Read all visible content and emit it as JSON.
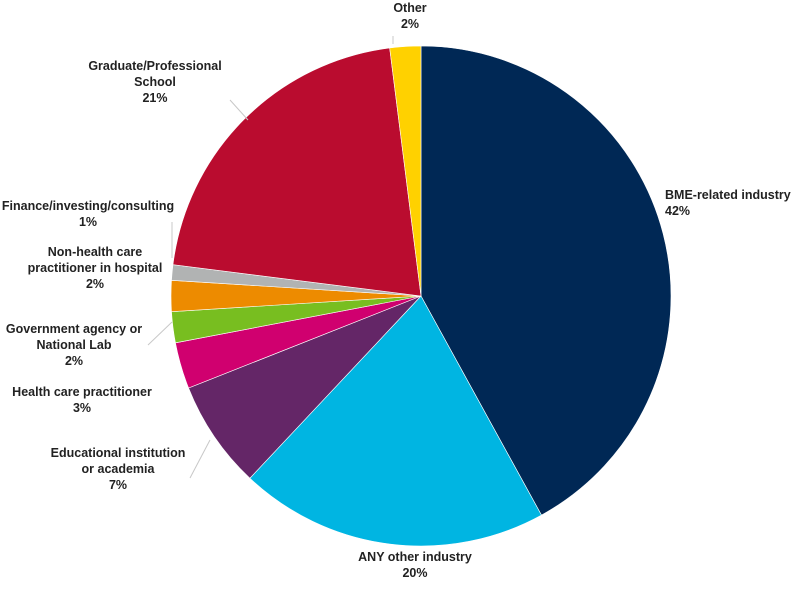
{
  "chart_data": {
    "type": "pie",
    "title": "",
    "slices": [
      {
        "label": [
          "BME-related industry"
        ],
        "value": 42,
        "display": "42%",
        "color": "#002855"
      },
      {
        "label": [
          "ANY other industry"
        ],
        "value": 20,
        "display": "20%",
        "color": "#00B5E2"
      },
      {
        "label": [
          "Educational institution",
          "or academia"
        ],
        "value": 7,
        "display": "7%",
        "color": "#642667"
      },
      {
        "label": [
          "Health care practitioner"
        ],
        "value": 3,
        "display": "3%",
        "color": "#D0006F"
      },
      {
        "label": [
          "Government agency or",
          "National Lab"
        ],
        "value": 2,
        "display": "2%",
        "color": "#78BE20"
      },
      {
        "label": [
          "Non-health care",
          "practitioner in hospital"
        ],
        "value": 2,
        "display": "2%",
        "color": "#ED8B00"
      },
      {
        "label": [
          "Finance/investing/consulting"
        ],
        "value": 1,
        "display": "1%",
        "color": "#B1B3B3"
      },
      {
        "label": [
          "Graduate/Professional",
          "School"
        ],
        "value": 21,
        "display": "21%",
        "color": "#BA0C2F"
      },
      {
        "label": [
          "Other"
        ],
        "value": 2,
        "display": "2%",
        "color": "#FFD100"
      }
    ]
  }
}
